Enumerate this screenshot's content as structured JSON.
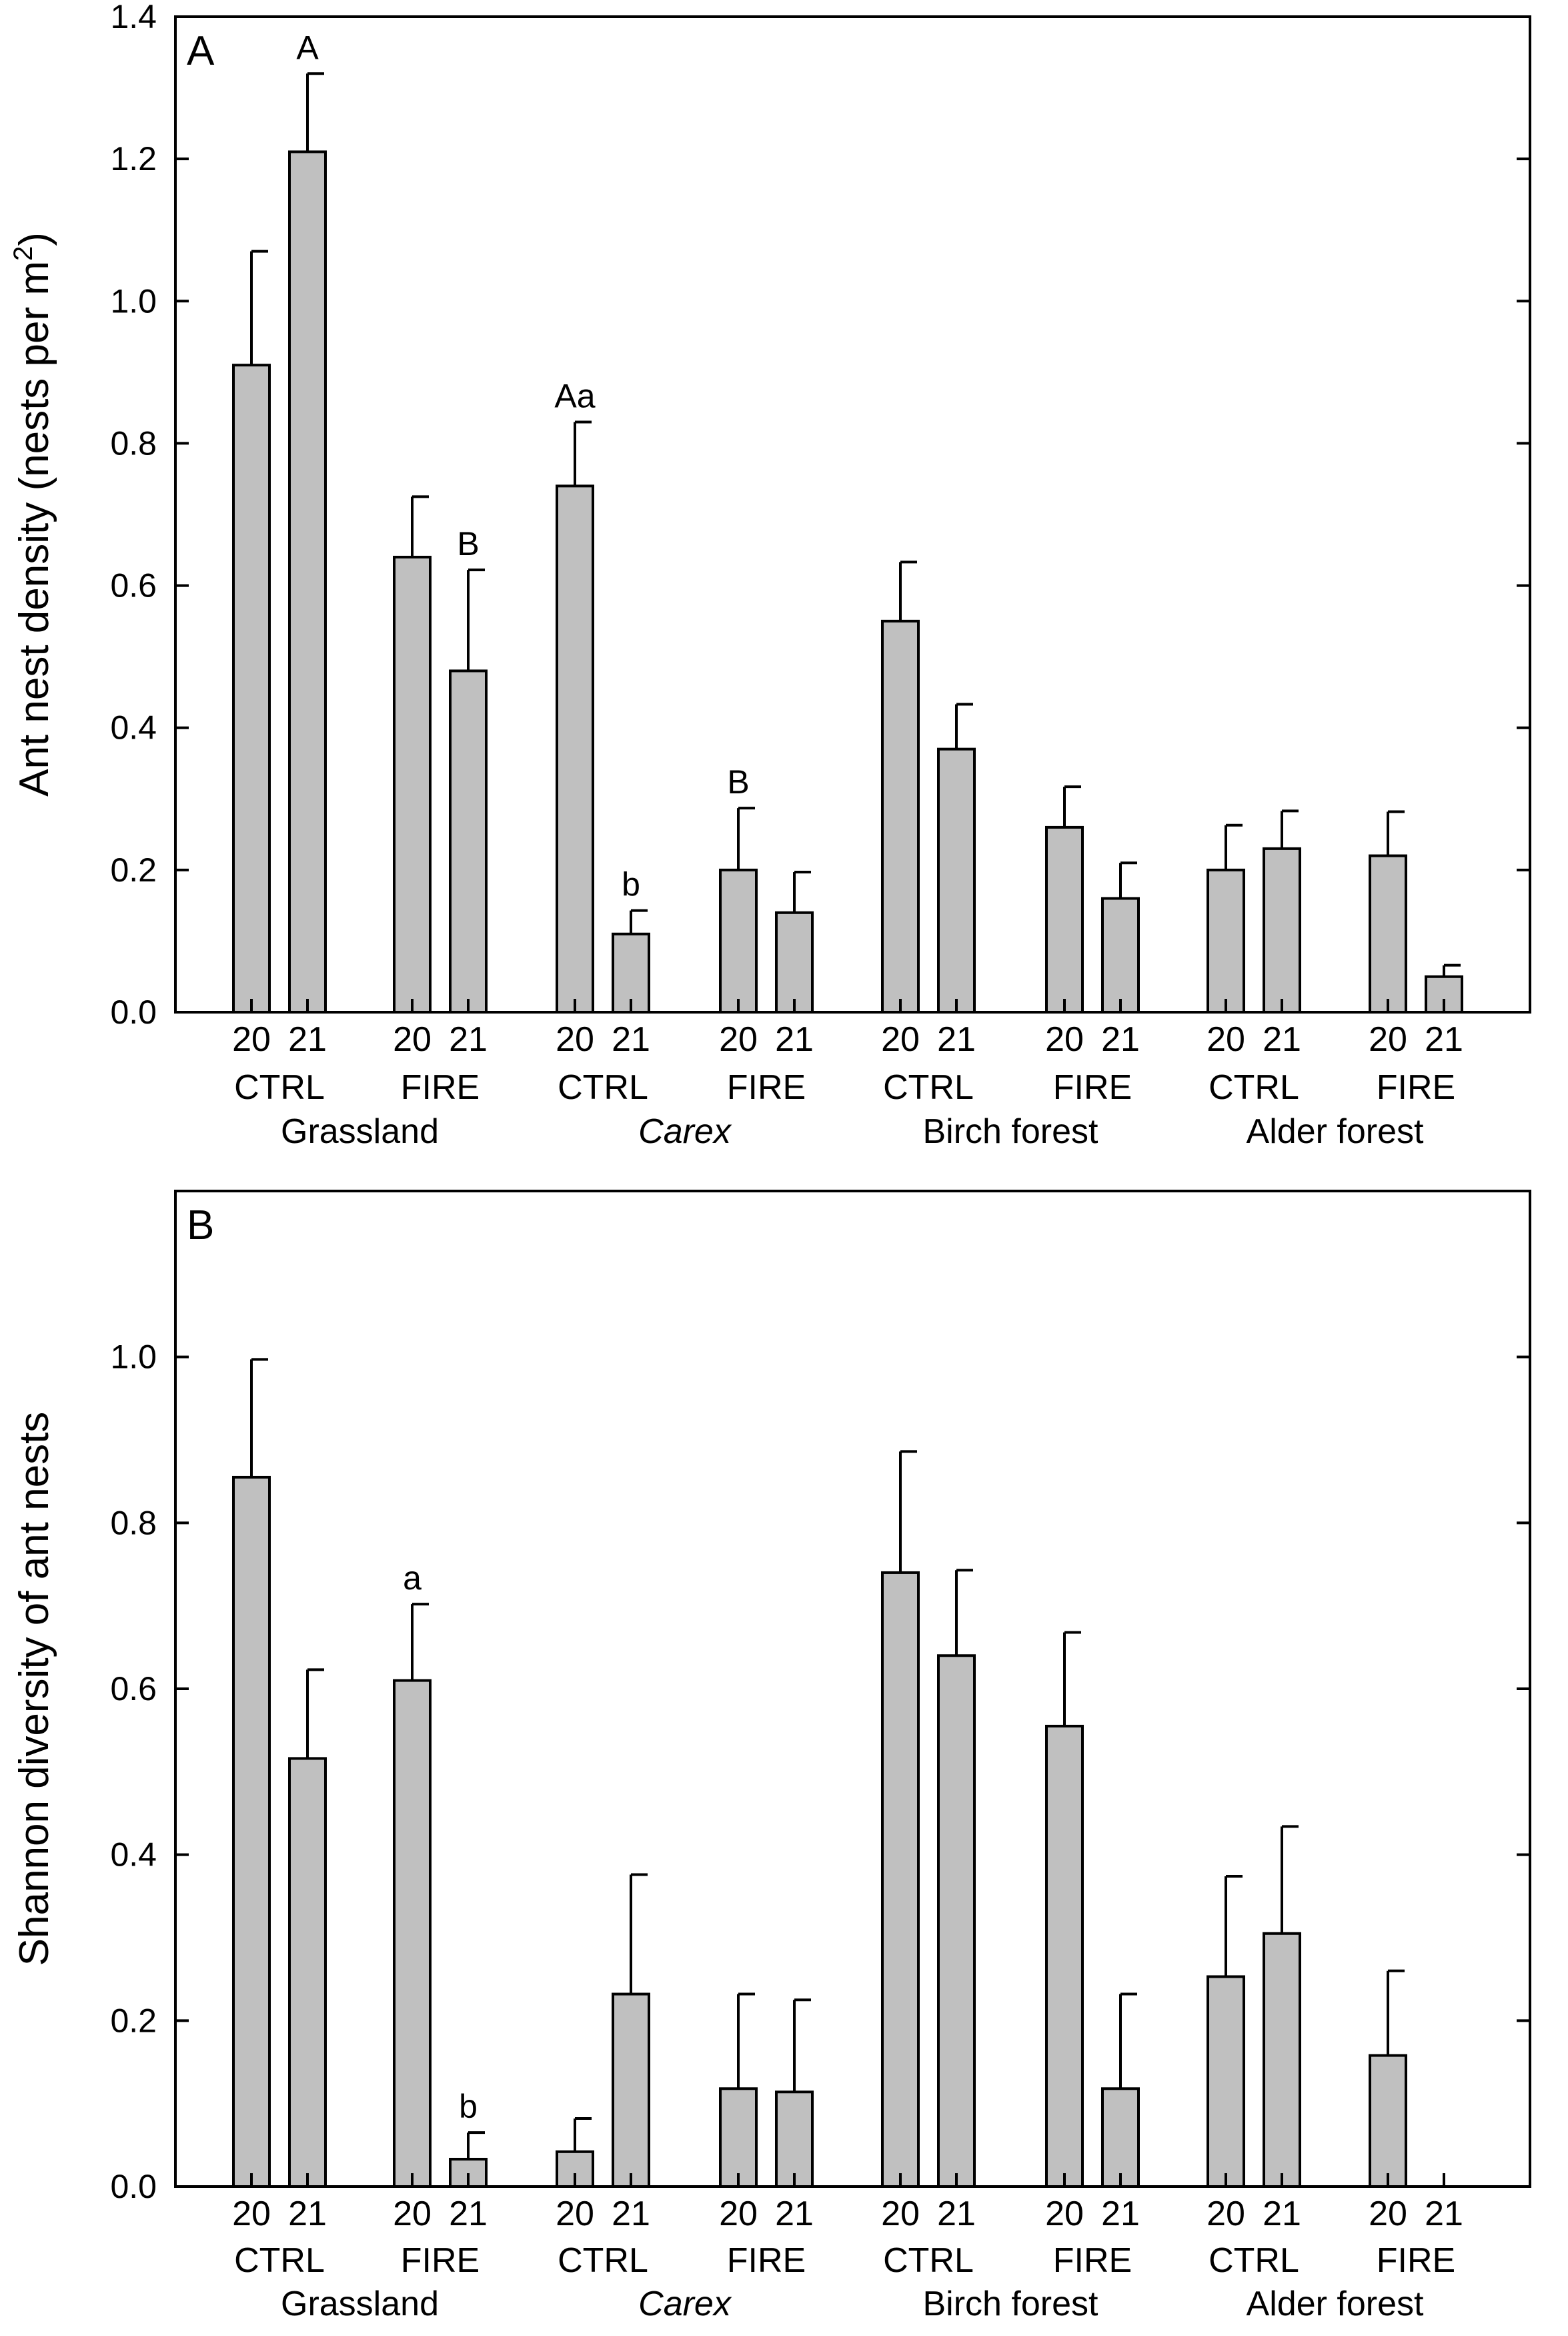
{
  "chart_data": [
    {
      "type": "bar",
      "panel_label": "A",
      "ylabel": "Ant nest density (nests per m",
      "ylabel_sup": "2",
      "ylabel_end": ")",
      "ylim": [
        0,
        1.4
      ],
      "yticks": [
        "0.0",
        "0.2",
        "0.4",
        "0.6",
        "0.8",
        "1.0",
        "1.2",
        "1.4"
      ],
      "habitats": [
        {
          "name": "Grassland",
          "italic": false
        },
        {
          "name": "Carex",
          "italic": true
        },
        {
          "name": "Birch forest",
          "italic": false
        },
        {
          "name": "Alder forest",
          "italic": false
        }
      ],
      "groups": [
        {
          "years": [
            "20",
            "21"
          ],
          "treatment": "CTRL",
          "values": [
            0.91,
            1.21
          ],
          "errors": [
            1.07,
            1.32
          ],
          "labels": [
            "",
            "A"
          ]
        },
        {
          "years": [
            "20",
            "21"
          ],
          "treatment": "FIRE",
          "values": [
            0.64,
            0.48
          ],
          "errors": [
            0.725,
            0.622
          ],
          "labels": [
            "",
            "B"
          ]
        },
        {
          "years": [
            "20",
            "21"
          ],
          "treatment": "CTRL",
          "values": [
            0.74,
            0.11
          ],
          "errors": [
            0.83,
            0.143
          ],
          "labels": [
            "Aa",
            "b"
          ]
        },
        {
          "years": [
            "20",
            "21"
          ],
          "treatment": "FIRE",
          "values": [
            0.2,
            0.14
          ],
          "errors": [
            0.287,
            0.197
          ],
          "labels": [
            "B",
            ""
          ]
        },
        {
          "years": [
            "20",
            "21"
          ],
          "treatment": "CTRL",
          "values": [
            0.55,
            0.37
          ],
          "errors": [
            0.633,
            0.433
          ],
          "labels": [
            "",
            ""
          ]
        },
        {
          "years": [
            "20",
            "21"
          ],
          "treatment": "FIRE",
          "values": [
            0.26,
            0.16
          ],
          "errors": [
            0.317,
            0.21
          ],
          "labels": [
            "",
            ""
          ]
        },
        {
          "years": [
            "20",
            "21"
          ],
          "treatment": "CTRL",
          "values": [
            0.2,
            0.23
          ],
          "errors": [
            0.263,
            0.283
          ],
          "labels": [
            "",
            ""
          ]
        },
        {
          "years": [
            "20",
            "21"
          ],
          "treatment": "FIRE",
          "values": [
            0.22,
            0.05
          ],
          "errors": [
            0.282,
            0.066
          ],
          "labels": [
            "",
            ""
          ]
        }
      ]
    },
    {
      "type": "bar",
      "panel_label": "B",
      "ylabel": "Shannon diversity of ant nests",
      "ylabel_sup": "",
      "ylabel_end": "",
      "ylim": [
        0,
        1.2
      ],
      "yticks": [
        "0.0",
        "0.2",
        "0.4",
        "0.6",
        "0.8",
        "1.0"
      ],
      "habitats": [
        {
          "name": "Grassland",
          "italic": false
        },
        {
          "name": "Carex",
          "italic": true
        },
        {
          "name": "Birch forest",
          "italic": false
        },
        {
          "name": "Alder forest",
          "italic": false
        }
      ],
      "groups": [
        {
          "years": [
            "20",
            "21"
          ],
          "treatment": "CTRL",
          "values": [
            0.855,
            0.516
          ],
          "errors": [
            0.997,
            0.623
          ],
          "labels": [
            "",
            ""
          ]
        },
        {
          "years": [
            "20",
            "21"
          ],
          "treatment": "FIRE",
          "values": [
            0.61,
            0.033
          ],
          "errors": [
            0.702,
            0.065
          ],
          "labels": [
            "a",
            "b"
          ]
        },
        {
          "years": [
            "20",
            "21"
          ],
          "treatment": "CTRL",
          "values": [
            0.042,
            0.232
          ],
          "errors": [
            0.082,
            0.376
          ],
          "labels": [
            "",
            ""
          ]
        },
        {
          "years": [
            "20",
            "21"
          ],
          "treatment": "FIRE",
          "values": [
            0.118,
            0.114
          ],
          "errors": [
            0.232,
            0.225
          ],
          "labels": [
            "",
            ""
          ]
        },
        {
          "years": [
            "20",
            "21"
          ],
          "treatment": "CTRL",
          "values": [
            0.74,
            0.64
          ],
          "errors": [
            0.886,
            0.743
          ],
          "labels": [
            "",
            ""
          ]
        },
        {
          "years": [
            "20",
            "21"
          ],
          "treatment": "FIRE",
          "values": [
            0.555,
            0.118
          ],
          "errors": [
            0.668,
            0.232
          ],
          "labels": [
            "",
            ""
          ]
        },
        {
          "years": [
            "20",
            "21"
          ],
          "treatment": "CTRL",
          "values": [
            0.253,
            0.305
          ],
          "errors": [
            0.374,
            0.434
          ],
          "labels": [
            "",
            ""
          ]
        },
        {
          "years": [
            "20",
            "21"
          ],
          "treatment": "FIRE",
          "values": [
            0.158,
            0
          ],
          "errors": [
            0.26,
            null
          ],
          "labels": [
            "",
            ""
          ]
        }
      ]
    }
  ]
}
